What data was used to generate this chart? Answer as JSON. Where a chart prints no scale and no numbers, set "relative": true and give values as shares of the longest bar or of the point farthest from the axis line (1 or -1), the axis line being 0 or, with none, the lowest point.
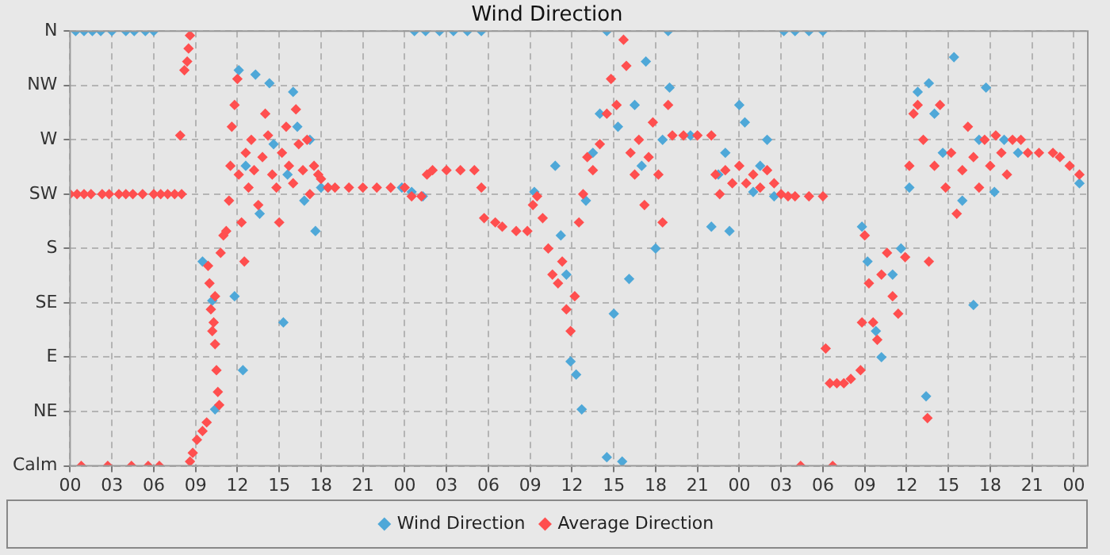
{
  "chart_data": {
    "type": "scatter",
    "title": "Wind Direction",
    "marker": "diamond",
    "grid": true,
    "legend": "bottom",
    "relative": true,
    "xlim": [
      0,
      73
    ],
    "xticks": [
      {
        "value": 0,
        "label": "00"
      },
      {
        "value": 3,
        "label": "03"
      },
      {
        "value": 6,
        "label": "06"
      },
      {
        "value": 9,
        "label": "09"
      },
      {
        "value": 12,
        "label": "12"
      },
      {
        "value": 15,
        "label": "15"
      },
      {
        "value": 18,
        "label": "18"
      },
      {
        "value": 21,
        "label": "21"
      },
      {
        "value": 24,
        "label": "00"
      },
      {
        "value": 27,
        "label": "03"
      },
      {
        "value": 30,
        "label": "06"
      },
      {
        "value": 33,
        "label": "09"
      },
      {
        "value": 36,
        "label": "12"
      },
      {
        "value": 39,
        "label": "15"
      },
      {
        "value": 42,
        "label": "18"
      },
      {
        "value": 45,
        "label": "21"
      },
      {
        "value": 48,
        "label": "00"
      },
      {
        "value": 51,
        "label": "03"
      },
      {
        "value": 54,
        "label": "06"
      },
      {
        "value": 57,
        "label": "09"
      },
      {
        "value": 60,
        "label": "12"
      },
      {
        "value": 63,
        "label": "15"
      },
      {
        "value": 66,
        "label": "18"
      },
      {
        "value": 69,
        "label": "21"
      },
      {
        "value": 72,
        "label": "00"
      }
    ],
    "y_categories": [
      "N",
      "NW",
      "W",
      "SW",
      "S",
      "SE",
      "E",
      "NE",
      "Calm"
    ],
    "series": [
      {
        "name": "Wind Direction",
        "color": "#4fa8d8",
        "x": [
          0.4,
          1,
          1.6,
          2.2,
          3,
          4,
          4.6,
          5.4,
          6,
          24.7,
          25.5,
          26.5,
          27.5,
          28.5,
          29.5,
          38.5,
          42.9,
          51.2,
          52,
          53,
          54,
          9.5,
          10.4,
          10.2,
          11.8,
          12.1,
          12.4,
          12.6,
          13.3,
          13.6,
          14.3,
          14.6,
          15.3,
          15.6,
          16,
          16.3,
          16.8,
          17.2,
          17.6,
          18,
          18.5,
          20,
          23.8,
          24.5,
          25.3,
          33.3,
          34.8,
          35.2,
          35.6,
          35.9,
          36.3,
          36.7,
          37,
          37.5,
          38,
          38.5,
          39,
          39.3,
          39.6,
          40.1,
          40.5,
          41,
          41.3,
          42,
          42.5,
          43,
          44.5,
          46,
          46.5,
          47,
          47.3,
          48,
          48.4,
          49,
          49.5,
          50,
          50.5,
          56.8,
          57.2,
          57.8,
          58.2,
          59,
          59.6,
          60.2,
          60.8,
          61.4,
          61.6,
          62,
          62.6,
          63.4,
          64,
          64.8,
          65.2,
          65.7,
          66.3,
          67,
          68,
          72.4
        ],
        "values": [
          1,
          1,
          1,
          1,
          1,
          1,
          1,
          1,
          1,
          1,
          1,
          1,
          1,
          1,
          1,
          1,
          1,
          1,
          1,
          1,
          1,
          0.47,
          0.13,
          0.38,
          0.39,
          0.91,
          0.22,
          0.69,
          0.9,
          0.58,
          0.88,
          0.74,
          0.33,
          0.67,
          0.86,
          0.78,
          0.61,
          0.75,
          0.54,
          0.64,
          0.64,
          null,
          0.64,
          0.63,
          0.62,
          0.63,
          0.69,
          0.53,
          0.44,
          0.24,
          0.21,
          0.13,
          0.61,
          0.72,
          0.81,
          0.02,
          0.35,
          0.78,
          0.01,
          0.43,
          0.83,
          0.69,
          0.93,
          0.5,
          0.75,
          0.87,
          0.76,
          0.55,
          0.67,
          0.72,
          0.54,
          0.83,
          0.79,
          0.63,
          0.69,
          0.75,
          0.62,
          0.55,
          0.47,
          0.31,
          0.25,
          0.44,
          0.5,
          0.64,
          0.86,
          0.16,
          0.88,
          0.81,
          0.72,
          0.94,
          0.61,
          0.37,
          0.75,
          0.87,
          0.63,
          0.75,
          0.72,
          0.65
        ]
      },
      {
        "name": "Average Direction",
        "color": "#ff4f4f",
        "x": [
          0,
          0.5,
          1,
          1.5,
          2.3,
          2.8,
          3.5,
          4,
          4.5,
          5.2,
          6,
          6.5,
          7,
          7.5,
          8,
          0.8,
          2.7,
          4.4,
          5.6,
          6.4,
          8.6,
          8.8,
          9.1,
          9.5,
          9.8,
          7.9,
          8.6,
          8.5,
          8.4,
          8.2,
          9.9,
          10,
          10.1,
          10.2,
          10.3,
          10.4,
          10.5,
          10.6,
          10.7,
          10.4,
          10.8,
          11,
          11.2,
          11.4,
          11.5,
          11.6,
          11.8,
          12,
          12.1,
          12.3,
          12.5,
          12.6,
          12.8,
          13,
          13.2,
          13.5,
          13.8,
          14,
          14.2,
          14.5,
          14.8,
          15,
          15.2,
          15.5,
          15.7,
          16,
          16.2,
          16.4,
          16.7,
          17,
          17.2,
          17.5,
          17.8,
          18,
          18.5,
          19,
          20,
          21,
          22,
          23,
          24,
          24.5,
          25.2,
          25.6,
          26,
          27,
          28,
          29,
          29.5,
          29.7,
          30.5,
          31,
          32,
          32.8,
          33.2,
          33.5,
          33.9,
          34.3,
          34.6,
          35,
          35.3,
          35.6,
          35.9,
          36.2,
          36.5,
          36.8,
          37.1,
          37.5,
          38,
          38.5,
          38.8,
          39.2,
          39.7,
          39.9,
          40.2,
          40.5,
          40.8,
          41.2,
          41.5,
          41.8,
          42.2,
          42.5,
          42.9,
          43.2,
          44,
          45,
          46,
          46.3,
          46.6,
          47,
          47.5,
          48,
          48.5,
          49,
          49.5,
          50,
          50.5,
          51,
          51.5,
          52,
          53,
          54,
          52.4,
          54.7,
          54.2,
          54.5,
          55,
          55.5,
          56,
          56.7,
          56.8,
          57,
          57.3,
          57.6,
          57.9,
          58.2,
          58.6,
          59,
          59.4,
          59.9,
          60.2,
          60.5,
          60.8,
          61.2,
          61.5,
          61.6,
          62,
          62.4,
          62.8,
          63.2,
          63.6,
          64,
          64.4,
          64.8,
          65.2,
          65.6,
          66,
          66.4,
          66.8,
          67.2,
          67.6,
          68.2,
          68.7,
          69.5,
          70.5,
          71,
          71.7,
          72.4
        ],
        "values": [
          0.625,
          0.625,
          0.625,
          0.625,
          0.625,
          0.625,
          0.625,
          0.625,
          0.625,
          0.625,
          0.625,
          0.625,
          0.625,
          0.625,
          0.625,
          0,
          0,
          0,
          0,
          0,
          0.01,
          0.03,
          0.06,
          0.08,
          0.1,
          0.76,
          0.99,
          0.96,
          0.93,
          0.91,
          0.46,
          0.42,
          0.36,
          0.31,
          0.33,
          0.28,
          0.22,
          0.17,
          0.14,
          0.39,
          0.49,
          0.53,
          0.54,
          0.61,
          0.69,
          0.78,
          0.83,
          0.89,
          0.67,
          0.56,
          0.47,
          0.72,
          0.64,
          0.75,
          0.68,
          0.6,
          0.71,
          0.81,
          0.76,
          0.67,
          0.64,
          0.56,
          0.72,
          0.78,
          0.69,
          0.65,
          0.82,
          0.74,
          0.68,
          0.75,
          0.625,
          0.69,
          0.67,
          0.66,
          0.64,
          0.64,
          0.64,
          0.64,
          0.64,
          0.64,
          0.64,
          0.62,
          0.62,
          0.67,
          0.68,
          0.68,
          0.68,
          0.68,
          0.64,
          0.57,
          0.56,
          0.55,
          0.54,
          0.54,
          0.6,
          0.62,
          0.57,
          0.5,
          0.44,
          0.42,
          0.47,
          0.36,
          0.31,
          0.39,
          0.56,
          0.625,
          0.71,
          0.68,
          0.74,
          0.81,
          0.89,
          0.83,
          0.98,
          0.92,
          0.72,
          0.67,
          0.75,
          0.6,
          0.71,
          0.79,
          0.67,
          0.56,
          0.83,
          0.76,
          0.76,
          0.76,
          0.76,
          0.67,
          0.625,
          0.68,
          0.65,
          0.69,
          0.65,
          0.67,
          0.64,
          0.68,
          0.65,
          0.625,
          0.62,
          0.62,
          0.62,
          0.62,
          0,
          0,
          0.27,
          0.19,
          0.19,
          0.19,
          0.2,
          0.22,
          0.33,
          0.53,
          0.42,
          0.33,
          0.29,
          0.44,
          0.49,
          0.39,
          0.35,
          0.48,
          0.69,
          0.81,
          0.83,
          0.75,
          0.11,
          0.47,
          0.69,
          0.83,
          0.64,
          0.72,
          0.58,
          0.68,
          0.78,
          0.71,
          0.64,
          0.75,
          0.69,
          0.76,
          0.72,
          0.67,
          0.75,
          0.75,
          0.72,
          0.72,
          0.72,
          0.71,
          0.69,
          0.67
        ]
      }
    ]
  }
}
